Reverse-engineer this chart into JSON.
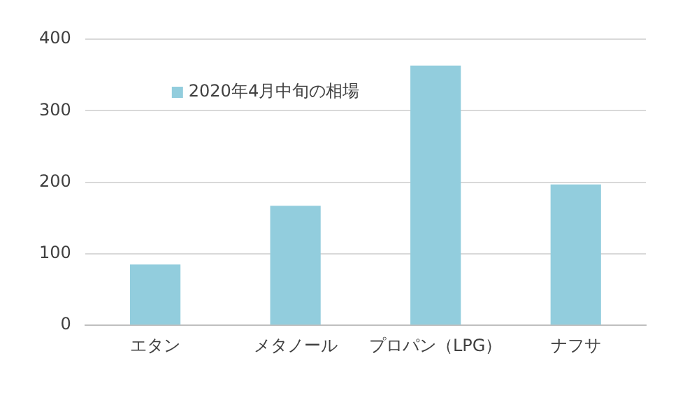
{
  "chart_data": {
    "type": "bar",
    "categories": [
      "エタン",
      "メタノール",
      "プロパン（LPG）",
      "ナフサ"
    ],
    "series": [
      {
        "name": "2020年4月中旬の相場",
        "color": "#92cddd",
        "values": [
          85,
          167,
          363,
          197
        ]
      }
    ],
    "ylim": [
      0,
      400
    ],
    "yticks": [
      0,
      100,
      200,
      300,
      400
    ],
    "grid": "y",
    "legend": "top left"
  }
}
